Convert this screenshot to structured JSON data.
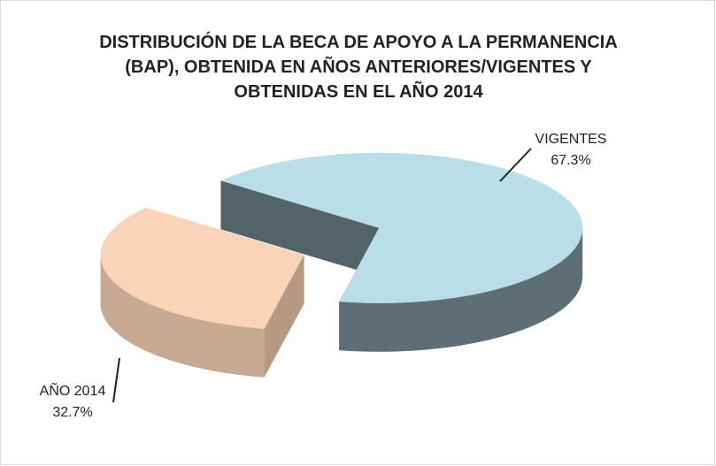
{
  "chart_data": {
    "type": "pie",
    "title": "DISTRIBUCIÓN DE LA BECA DE APOYO A LA PERMANENCIA (BAP), OBTENIDA EN AÑOS ANTERIORES/VIGENTES Y OBTENIDAS EN EL AÑO 2014",
    "categories": [
      "VIGENTES",
      "AÑO 2014"
    ],
    "values": [
      67.3,
      32.7
    ],
    "value_labels": [
      "67.3%",
      "32.7%"
    ],
    "colors": [
      "#b9dee8",
      "#fad4b8"
    ]
  }
}
